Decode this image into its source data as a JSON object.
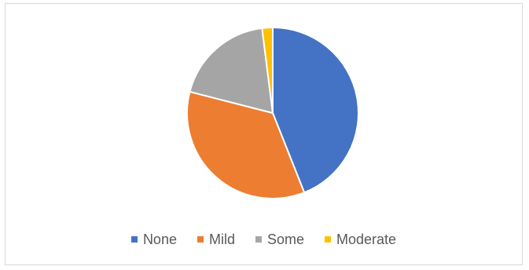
{
  "chart_data": {
    "type": "pie",
    "title": "",
    "categories": [
      "None",
      "Mild",
      "Some",
      "Moderate"
    ],
    "values": [
      44,
      35,
      19,
      2
    ],
    "colors": [
      "#4472C4",
      "#ED7D31",
      "#A5A5A5",
      "#FFC000"
    ],
    "start_angle_deg": 0,
    "direction": "clockwise",
    "legend": "bottom"
  }
}
